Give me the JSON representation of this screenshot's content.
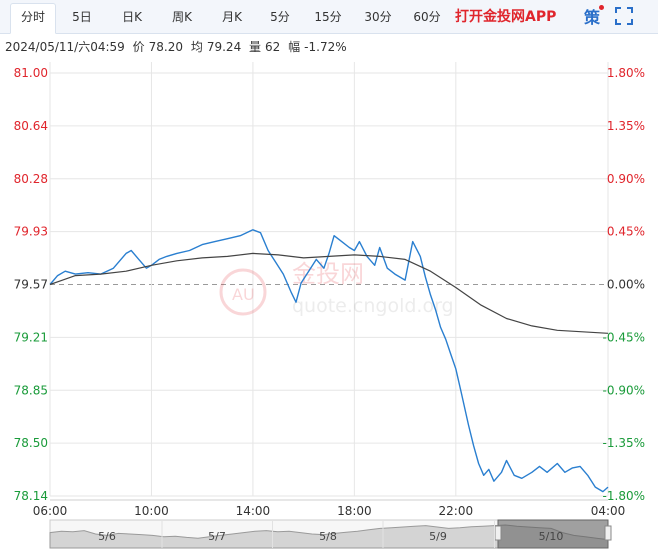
{
  "tabs": [
    {
      "label": "分时",
      "active": true
    },
    {
      "label": "5日",
      "active": false
    },
    {
      "label": "日K",
      "active": false
    },
    {
      "label": "周K",
      "active": false
    },
    {
      "label": "月K",
      "active": false
    },
    {
      "label": "5分",
      "active": false
    },
    {
      "label": "15分",
      "active": false
    },
    {
      "label": "30分",
      "active": false
    },
    {
      "label": "60分",
      "active": false
    }
  ],
  "app_link": "打开金投网APP",
  "strategy_label": "策",
  "icons": {
    "fullscreen": "fullscreen-icon"
  },
  "info": {
    "datetime": "2024/05/11/六04:59",
    "price_label": "价",
    "price": "78.20",
    "avg_label": "均",
    "avg": "79.24",
    "volume_label": "量",
    "volume": "62",
    "change_label": "幅",
    "change": "-1.72%"
  },
  "watermark": {
    "brand": "金投网",
    "url": "quote.cngold.org"
  },
  "colors": {
    "up": "#e0252c",
    "down": "#1a9b3a",
    "price_line": "#2a7fd0",
    "avg_line": "#444444",
    "grid": "#e6e6e6"
  },
  "chart_data": {
    "type": "line",
    "title": "",
    "xlabel": "",
    "ylabel": "",
    "base_price": 79.57,
    "ylim": [
      78.14,
      81.0
    ],
    "y_ticks_left": [
      "81.00",
      "80.64",
      "80.28",
      "79.93",
      "79.57",
      "79.21",
      "78.85",
      "78.50",
      "78.14"
    ],
    "y_ticks_right": [
      "1.80%",
      "1.35%",
      "0.90%",
      "0.45%",
      "0.00%",
      "-0.45%",
      "-0.90%",
      "-1.35%",
      "-1.80%"
    ],
    "x_ticks": [
      "06:00",
      "10:00",
      "14:00",
      "18:00",
      "22:00",
      "04:00"
    ],
    "x_hours_from_0600": [
      0,
      4,
      8,
      12,
      16,
      22
    ],
    "xlim_hours": [
      0,
      22
    ],
    "navigator_labels": [
      "5/6",
      "5/7",
      "5/8",
      "5/9",
      "5/10"
    ],
    "series": [
      {
        "role": "price",
        "x": [
          0,
          0.3,
          0.6,
          1,
          1.5,
          2,
          2.5,
          3,
          3.2,
          3.5,
          3.8,
          4,
          4.3,
          4.6,
          5,
          5.5,
          6,
          6.5,
          7,
          7.5,
          8,
          8.3,
          8.6,
          8.9,
          9.2,
          9.5,
          9.7,
          9.9,
          10.2,
          10.5,
          10.8,
          11,
          11.2,
          11.5,
          11.8,
          12,
          12.2,
          12.5,
          12.8,
          13,
          13.3,
          13.6,
          14,
          14.3,
          14.6,
          14.8,
          15,
          15.2,
          15.4,
          15.6,
          15.8,
          16,
          16.2,
          16.5,
          16.7,
          16.9,
          17.1,
          17.3,
          17.5,
          17.8,
          18,
          18.3,
          18.6,
          19,
          19.3,
          19.6,
          20,
          20.3,
          20.6,
          20.9,
          21.2,
          21.5,
          21.8,
          22
        ],
        "y": [
          79.57,
          79.63,
          79.66,
          79.64,
          79.65,
          79.64,
          79.68,
          79.78,
          79.8,
          79.74,
          79.68,
          79.7,
          79.74,
          79.76,
          79.78,
          79.8,
          79.84,
          79.86,
          79.88,
          79.9,
          79.94,
          79.92,
          79.8,
          79.72,
          79.64,
          79.52,
          79.45,
          79.58,
          79.66,
          79.74,
          79.68,
          79.78,
          79.9,
          79.86,
          79.82,
          79.8,
          79.86,
          79.76,
          79.7,
          79.82,
          79.68,
          79.64,
          79.6,
          79.86,
          79.76,
          79.62,
          79.5,
          79.4,
          79.28,
          79.2,
          79.1,
          79.0,
          78.85,
          78.62,
          78.48,
          78.36,
          78.28,
          78.32,
          78.24,
          78.3,
          78.38,
          78.28,
          78.26,
          78.3,
          78.34,
          78.3,
          78.36,
          78.3,
          78.33,
          78.34,
          78.28,
          78.2,
          78.17,
          78.2
        ]
      },
      {
        "role": "average",
        "x": [
          0,
          0.5,
          1,
          2,
          3,
          4,
          5,
          6,
          7,
          8,
          9,
          10,
          11,
          12,
          13,
          14,
          15,
          16,
          17,
          18,
          19,
          20,
          21,
          22
        ],
        "y": [
          79.57,
          79.6,
          79.63,
          79.64,
          79.66,
          79.7,
          79.73,
          79.75,
          79.76,
          79.78,
          79.77,
          79.75,
          79.76,
          79.77,
          79.76,
          79.74,
          79.66,
          79.55,
          79.43,
          79.34,
          79.29,
          79.26,
          79.25,
          79.24
        ]
      }
    ],
    "navigator_values": [
      0.55,
      0.6,
      0.58,
      0.62,
      0.5,
      0.45,
      0.52,
      0.5,
      0.48,
      0.45,
      0.4,
      0.42,
      0.38,
      0.35,
      0.4,
      0.45,
      0.5,
      0.55,
      0.6,
      0.62,
      0.58,
      0.6,
      0.55,
      0.5,
      0.48,
      0.52,
      0.56,
      0.6,
      0.65,
      0.7,
      0.72,
      0.75,
      0.78,
      0.8,
      0.75,
      0.7,
      0.72,
      0.76,
      0.78,
      0.8,
      0.82,
      0.78,
      0.75,
      0.72,
      0.7,
      0.55,
      0.45,
      0.4,
      0.35,
      0.3
    ]
  }
}
